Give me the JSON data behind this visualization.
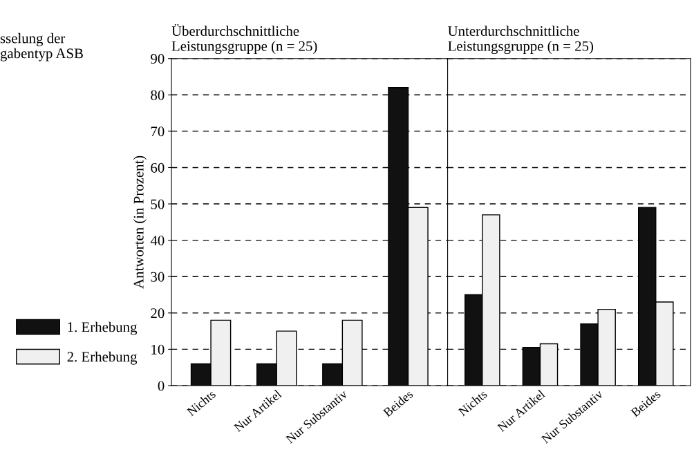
{
  "chart_data": [
    {
      "type": "bar",
      "title": "Überdurchschnittliche\nLeistungsgruppe (n = 25)",
      "ylabel": "Antworten (in Prozent)",
      "annotations": [
        "sselung der\ngabentyp ASB"
      ],
      "categories": [
        "Nichts",
        "Nur Artikel",
        "Nur Substantiv",
        "Beides"
      ],
      "series": [
        {
          "name": "1. Erhebung",
          "color": "#111111",
          "values": [
            6,
            6,
            6,
            82
          ]
        },
        {
          "name": "2. Erhebung",
          "color": "#f0f0f0",
          "values": [
            18,
            15,
            18,
            49
          ]
        }
      ],
      "ylim": [
        0,
        90
      ],
      "yticks": [
        0,
        10,
        20,
        30,
        40,
        50,
        60,
        70,
        80,
        90
      ],
      "grid": "y",
      "legend": "left"
    },
    {
      "type": "bar",
      "title": "Unterdurchschnittliche\nLeistungsgruppe (n = 25)",
      "categories": [
        "Nichts",
        "Nur Artikel",
        "Nur Substantiv",
        "Beides"
      ],
      "series": [
        {
          "color": "#111111",
          "values": [
            25,
            10.5,
            17,
            49
          ]
        },
        {
          "color": "#f0f0f0",
          "values": [
            47,
            11.5,
            21,
            23
          ]
        }
      ],
      "ylim": [
        0,
        90
      ],
      "yticks": [
        0,
        10,
        20,
        30,
        40,
        50,
        60,
        70,
        80,
        90
      ],
      "grid": "y",
      "tick_labels": "x"
    }
  ]
}
